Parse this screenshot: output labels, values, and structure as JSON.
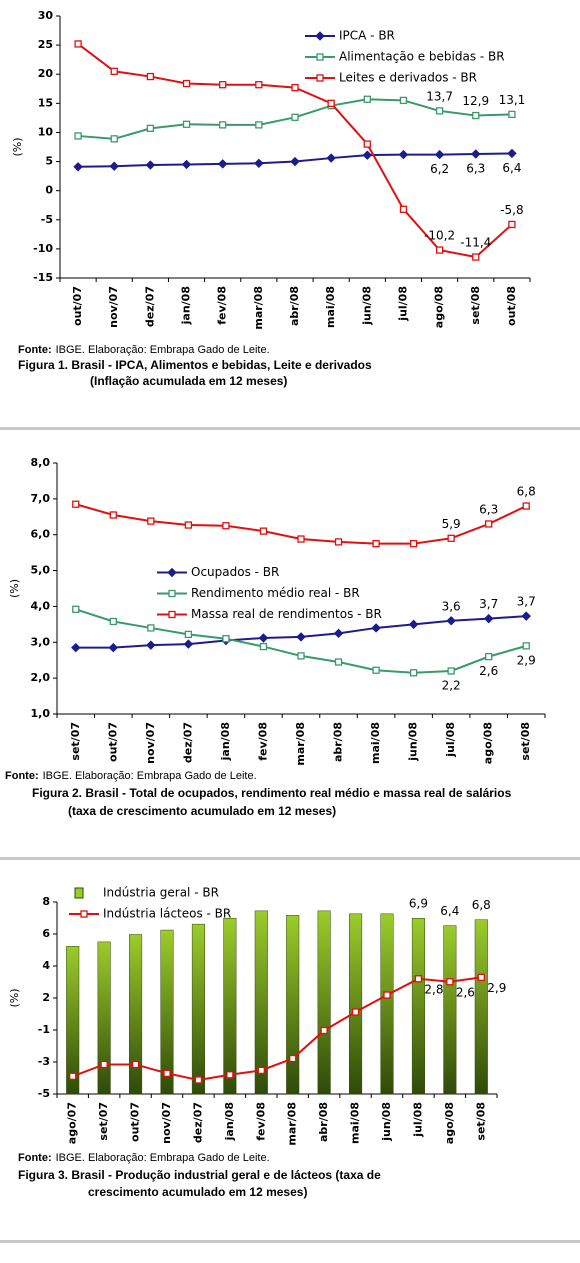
{
  "chart_data": [
    {
      "type": "line",
      "ylabel": "(%)",
      "source_label": "Fonte:",
      "source": "IBGE. Elaboração: Embrapa Gado de Leite.",
      "caption": [
        "Figura 1. Brasil - IPCA, Alimentos e bebidas, Leite e derivados",
        "(Inflação acumulada em 12 meses)"
      ],
      "categories": [
        "out/07",
        "nov/07",
        "dez/07",
        "jan/08",
        "fev/08",
        "mar/08",
        "abr/08",
        "mai/08",
        "jun/08",
        "jul/08",
        "ago/08",
        "set/08",
        "out/08"
      ],
      "ylim": [
        -15,
        30
      ],
      "yticks": [
        -15,
        -10,
        -5,
        0,
        5,
        10,
        15,
        20,
        25,
        30
      ],
      "legend": "upper right",
      "grid": false,
      "series": [
        {
          "name": "IPCA - BR",
          "color": "#1c1c8c",
          "marker": "diamond",
          "label_position": "below",
          "values": [
            4.1,
            4.2,
            4.4,
            4.5,
            4.6,
            4.7,
            5.0,
            5.6,
            6.1,
            6.2,
            6.2,
            6.3,
            6.4
          ],
          "value_labels": [
            null,
            null,
            null,
            null,
            null,
            null,
            null,
            null,
            null,
            null,
            "6,2",
            "6,3",
            "6,4"
          ]
        },
        {
          "name": "Alimentação e bebidas - BR",
          "color": "#3a9a6a",
          "marker": "square",
          "label_position": "above",
          "values": [
            9.4,
            8.9,
            10.7,
            11.4,
            11.3,
            11.3,
            12.6,
            14.6,
            15.7,
            15.5,
            13.7,
            12.9,
            13.1
          ],
          "value_labels": [
            null,
            null,
            null,
            null,
            null,
            null,
            null,
            null,
            null,
            null,
            "13,7",
            "12,9",
            "13,1"
          ]
        },
        {
          "name": "Leites e derivados - BR",
          "color": "#e01010",
          "marker": "square",
          "label_position": "above",
          "values": [
            25.2,
            20.5,
            19.6,
            18.4,
            18.2,
            18.2,
            17.7,
            15.0,
            8.0,
            -3.2,
            -10.2,
            -11.4,
            -5.8
          ],
          "value_labels": [
            null,
            null,
            null,
            null,
            null,
            null,
            null,
            null,
            null,
            null,
            "-10,2",
            "-11,4",
            "-5,8"
          ]
        }
      ]
    },
    {
      "type": "line",
      "ylabel": "(%)",
      "source_label": "Fonte:",
      "source": "IBGE. Elaboração: Embrapa Gado de Leite.",
      "caption": [
        "Figura 2. Brasil - Total de ocupados, rendimento real médio e massa real de salários",
        "(taxa de crescimento acumulado em 12 meses)"
      ],
      "categories": [
        "set/07",
        "out/07",
        "nov/07",
        "dez/07",
        "jan/08",
        "fev/08",
        "mar/08",
        "abr/08",
        "mai/08",
        "jun/08",
        "jul/08",
        "ago/08",
        "set/08"
      ],
      "ylim": [
        1,
        8
      ],
      "yticks": [
        {
          "value": 1,
          "label": "1,0"
        },
        {
          "value": 2,
          "label": "2,0"
        },
        {
          "value": 3,
          "label": "3,0"
        },
        {
          "value": 4,
          "label": "4,0"
        },
        {
          "value": 5,
          "label": "5,0"
        },
        {
          "value": 6,
          "label": "6,0"
        },
        {
          "value": 7,
          "label": "7,0"
        },
        {
          "value": 8,
          "label": "8,0"
        }
      ],
      "legend": "center left",
      "grid": false,
      "series": [
        {
          "name": "Ocupados - BR",
          "color": "#1c1c8c",
          "marker": "diamond",
          "label_position": "above",
          "values": [
            2.85,
            2.85,
            2.92,
            2.95,
            3.05,
            3.12,
            3.15,
            3.25,
            3.4,
            3.5,
            3.6,
            3.66,
            3.73
          ],
          "value_labels": [
            null,
            null,
            null,
            null,
            null,
            null,
            null,
            null,
            null,
            null,
            "3,6",
            "3,7",
            "3,7"
          ]
        },
        {
          "name": "Rendimento médio real - BR",
          "color": "#3a9a6a",
          "marker": "square",
          "label_position": "below",
          "values": [
            3.92,
            3.58,
            3.4,
            3.22,
            3.1,
            2.88,
            2.62,
            2.45,
            2.22,
            2.15,
            2.2,
            2.6,
            2.9
          ],
          "value_labels": [
            null,
            null,
            null,
            null,
            null,
            null,
            null,
            null,
            null,
            null,
            "2,2",
            "2,6",
            "2,9"
          ]
        },
        {
          "name": "Massa real de rendimentos - BR",
          "color": "#e01010",
          "marker": "square",
          "label_position": "above",
          "values": [
            6.85,
            6.55,
            6.38,
            6.27,
            6.25,
            6.1,
            5.88,
            5.8,
            5.75,
            5.75,
            5.9,
            6.3,
            6.8
          ],
          "value_labels": [
            null,
            null,
            null,
            null,
            null,
            null,
            null,
            null,
            null,
            null,
            "5,9",
            "6,3",
            "6,8"
          ]
        }
      ]
    },
    {
      "type": "combo",
      "ylabel": "(%)",
      "source_label": "Fonte:",
      "source": "IBGE. Elaboração: Embrapa Gado de Leite.",
      "caption": [
        "Figura 3. Brasil - Produção industrial geral e de lácteos (taxa de",
        "crescimento acumulado em 12 meses)"
      ],
      "categories": [
        "ago/07",
        "set/07",
        "out/07",
        "nov/07",
        "dez/07",
        "jan/08",
        "fev/08",
        "mar/08",
        "abr/08",
        "mai/08",
        "jun/08",
        "jul/08",
        "ago/08",
        "set/08"
      ],
      "ylim": [
        -5,
        8
      ],
      "yticks": [
        {
          "value": -5,
          "label": "-5"
        },
        {
          "value": -2.833,
          "label": "-3"
        },
        {
          "value": -0.667,
          "label": "-1"
        },
        {
          "value": 1.5,
          "label": "2"
        },
        {
          "value": 3.667,
          "label": "4"
        },
        {
          "value": 5.833,
          "label": "6"
        },
        {
          "value": 8,
          "label": "8"
        }
      ],
      "legend": "upper left",
      "grid": false,
      "series": [
        {
          "name": "Indústria geral - BR",
          "type": "bar",
          "color": "#9ccc2c",
          "label_color": "#3a9a6a",
          "label_position": "above",
          "values": [
            5.0,
            5.3,
            5.8,
            6.1,
            6.5,
            6.9,
            7.4,
            7.1,
            7.4,
            7.2,
            7.2,
            6.9,
            6.4,
            6.8
          ],
          "value_labels": [
            null,
            null,
            null,
            null,
            null,
            null,
            null,
            null,
            null,
            null,
            null,
            "6,9",
            "6,4",
            "6,8"
          ]
        },
        {
          "name": "Indústria lácteos - BR",
          "type": "line",
          "color": "#e01010",
          "marker": "square",
          "label_position": "right",
          "values": [
            -3.8,
            -3.0,
            -3.0,
            -3.6,
            -4.05,
            -3.7,
            -3.4,
            -2.6,
            -0.7,
            0.55,
            1.7,
            2.8,
            2.6,
            2.9
          ],
          "value_labels": [
            null,
            null,
            null,
            null,
            null,
            null,
            null,
            null,
            null,
            null,
            null,
            "2,8",
            "2,6",
            "2,9"
          ]
        }
      ]
    }
  ]
}
